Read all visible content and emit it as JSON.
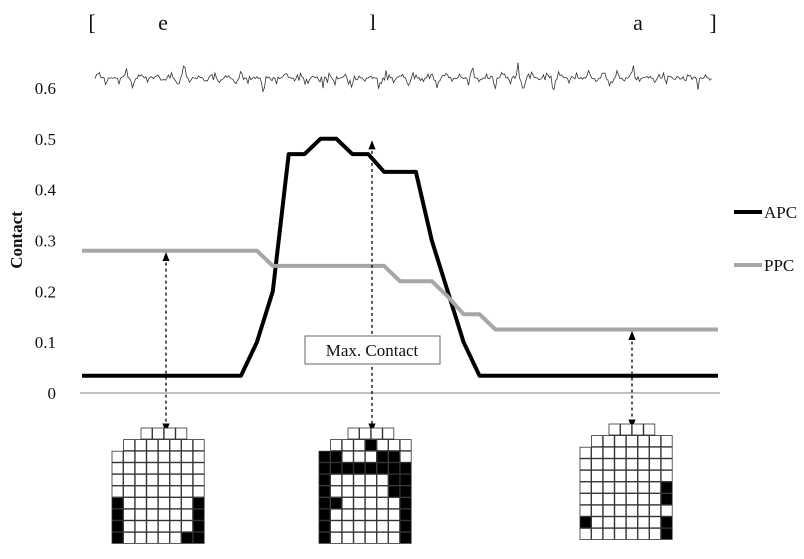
{
  "chart_data": {
    "type": "line",
    "ylabel": "Contact",
    "ylim": [
      0,
      0.6
    ],
    "yticks": [
      "0",
      "0.1",
      "0.2",
      "0.3",
      "0.4",
      "0.5",
      "0.6"
    ],
    "segments": [
      "[",
      "e",
      "l",
      "a",
      "]"
    ],
    "annotation": "Max. Contact",
    "legend_position": "right",
    "x": [
      0,
      1,
      2,
      3,
      4,
      5,
      6,
      7,
      8,
      9,
      10,
      11,
      12,
      13,
      14,
      15,
      16,
      17,
      18,
      19,
      20,
      21,
      22,
      23,
      24,
      25,
      26,
      27,
      28,
      29,
      30,
      31,
      32,
      33,
      34,
      35,
      36,
      37,
      38,
      39,
      40
    ],
    "series": [
      {
        "name": "APC",
        "color": "#000000",
        "values": [
          0.034,
          0.034,
          0.034,
          0.034,
          0.034,
          0.034,
          0.034,
          0.034,
          0.034,
          0.034,
          0.034,
          0.1,
          0.2,
          0.47,
          0.47,
          0.5,
          0.5,
          0.47,
          0.47,
          0.435,
          0.435,
          0.435,
          0.3,
          0.2,
          0.1,
          0.034,
          0.034,
          0.034,
          0.034,
          0.034,
          0.034,
          0.034,
          0.034,
          0.034,
          0.034,
          0.034,
          0.034,
          0.034,
          0.034,
          0.034,
          0.034
        ]
      },
      {
        "name": "PPC",
        "color": "#a6a6a6",
        "values": [
          0.28,
          0.28,
          0.28,
          0.28,
          0.28,
          0.28,
          0.28,
          0.28,
          0.28,
          0.28,
          0.28,
          0.28,
          0.25,
          0.25,
          0.25,
          0.25,
          0.25,
          0.25,
          0.25,
          0.25,
          0.22,
          0.22,
          0.22,
          0.19,
          0.155,
          0.155,
          0.125,
          0.125,
          0.125,
          0.125,
          0.125,
          0.125,
          0.125,
          0.125,
          0.125,
          0.125,
          0.125,
          0.125,
          0.125,
          0.125,
          0.125
        ]
      }
    ],
    "palatograms": [
      {
        "segment": "e",
        "grid": [
          "0011110",
          "01111111",
          "11111111",
          "11111111",
          "11111111",
          "11111111",
          "21111112",
          "21111112",
          "21111112",
          "21111122"
        ]
      },
      {
        "segment": "l",
        "grid": [
          "0011110",
          "01112111",
          "22111221",
          "22222222",
          "21111122",
          "21111122",
          "22111112",
          "21111112",
          "21111112",
          "21111112"
        ]
      },
      {
        "segment": "a",
        "grid": [
          "0011110",
          "01111111",
          "11111111",
          "11111111",
          "11111111",
          "11111112",
          "11111112",
          "11111111",
          "21111112",
          "11111112"
        ]
      }
    ]
  }
}
